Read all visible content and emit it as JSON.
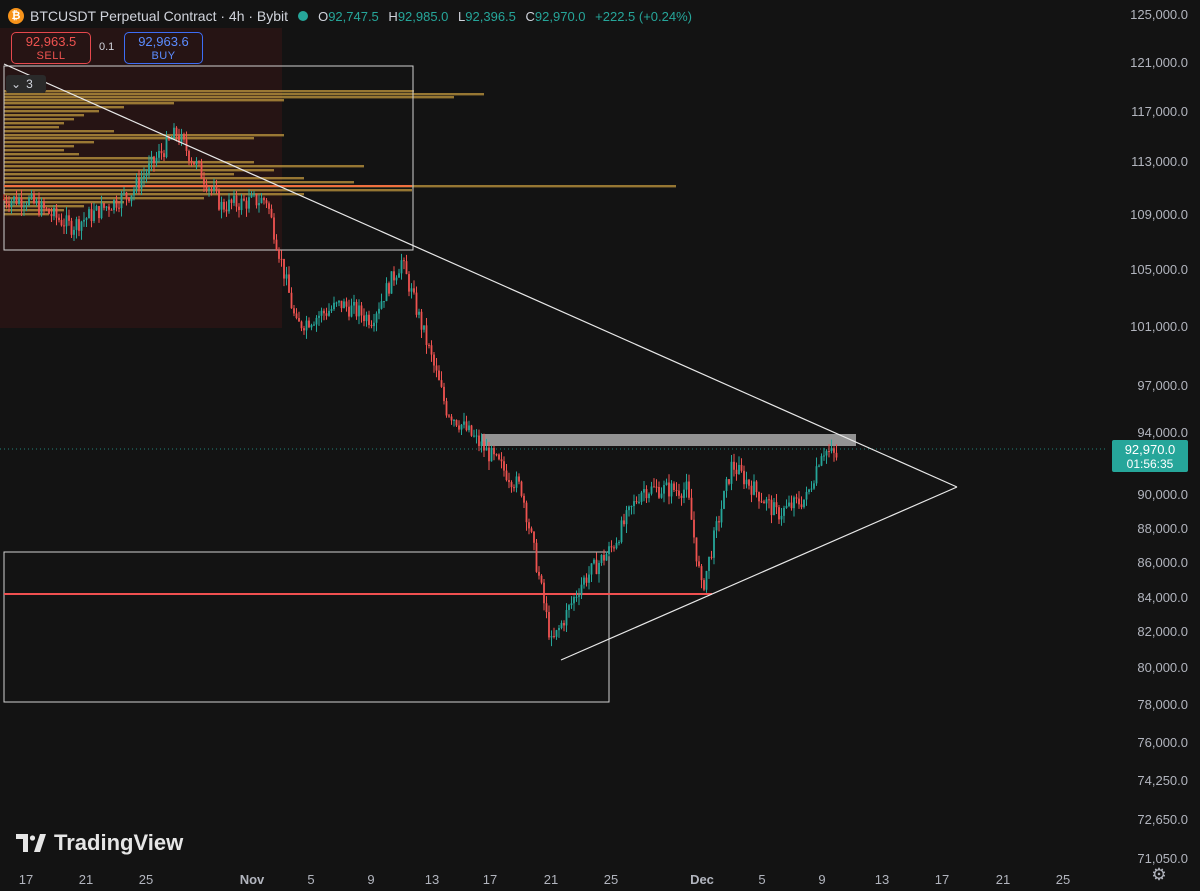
{
  "header": {
    "symbol": "BTCUSDT Perpetual Contract · 4h · Bybit",
    "coin_icon": "bitcoin-icon",
    "o_label": "O",
    "o": "92,747.5",
    "h_label": "H",
    "h": "92,985.0",
    "l_label": "L",
    "l": "92,396.5",
    "c_label": "C",
    "c": "92,970.0",
    "change": "+222.5 (+0.24%)"
  },
  "trade": {
    "sell_price": "92,963.5",
    "sell_label": "SELL",
    "qty": "0.1",
    "buy_price": "92,963.6",
    "buy_label": "BUY"
  },
  "collapse_count": "3",
  "price_axis": {
    "labels": [
      "125,000.0",
      "121,000.0",
      "117,000.0",
      "113,000.0",
      "109,000.0",
      "105,000.0",
      "101,000.0",
      "97,000.0",
      "94,000.0",
      "90,000.0",
      "88,000.0",
      "86,000.0",
      "84,000.0",
      "82,000.0",
      "80,000.0",
      "78,000.0",
      "76,000.0",
      "74,250.0",
      "72,650.0",
      "71,050.0"
    ],
    "current_price": "92,970.0",
    "countdown": "01:56:35"
  },
  "time_axis": {
    "labels": [
      "17",
      "21",
      "25",
      "Nov",
      "5",
      "9",
      "13",
      "17",
      "21",
      "25",
      "Dec",
      "5",
      "9",
      "13",
      "17",
      "21",
      "25"
    ]
  },
  "chart_data": {
    "type": "candlestick",
    "timeframe": "4h",
    "y_scale": "log",
    "last_candle": {
      "open": 92747.5,
      "high": 92985.0,
      "low": 92396.5,
      "close": 92970.0
    },
    "price_path_approx": [
      {
        "date": "Oct 17",
        "price": 110500
      },
      {
        "date": "Oct 20",
        "price": 108500
      },
      {
        "date": "Oct 24",
        "price": 111000
      },
      {
        "date": "Oct 27",
        "price": 115500
      },
      {
        "date": "Oct 30",
        "price": 110000
      },
      {
        "date": "Nov 2",
        "price": 110500
      },
      {
        "date": "Nov 4",
        "price": 101500
      },
      {
        "date": "Nov 7",
        "price": 103000
      },
      {
        "date": "Nov 9",
        "price": 102000
      },
      {
        "date": "Nov 11",
        "price": 106000
      },
      {
        "date": "Nov 14",
        "price": 96000
      },
      {
        "date": "Nov 17",
        "price": 93000
      },
      {
        "date": "Nov 19",
        "price": 91000
      },
      {
        "date": "Nov 21",
        "price": 82000
      },
      {
        "date": "Nov 23",
        "price": 85500
      },
      {
        "date": "Nov 25",
        "price": 87500
      },
      {
        "date": "Nov 27",
        "price": 91000
      },
      {
        "date": "Nov 30",
        "price": 91000
      },
      {
        "date": "Dec 1",
        "price": 85000
      },
      {
        "date": "Dec 3",
        "price": 92500
      },
      {
        "date": "Dec 6",
        "price": 89500
      },
      {
        "date": "Dec 8",
        "price": 90500
      },
      {
        "date": "Dec 9",
        "price": 93500
      },
      {
        "date": "Dec 10",
        "price": 92970
      }
    ],
    "levels": {
      "resistance_zone": [
        92500,
        94000
      ],
      "horizontal_support": 84300,
      "upper_trendline": [
        {
          "date": "Oct 17",
          "price": 119000
        },
        {
          "date": "Dec 18",
          "price": 90600
        }
      ],
      "lower_trendline": [
        {
          "date": "Nov 21",
          "price": 80800
        },
        {
          "date": "Dec 18",
          "price": 90600
        }
      ]
    },
    "colors": {
      "up": "#26a69a",
      "down": "#ef5350",
      "background": "#131313",
      "volume_profile": "#b8913c",
      "support_line": "#f05050"
    }
  }
}
